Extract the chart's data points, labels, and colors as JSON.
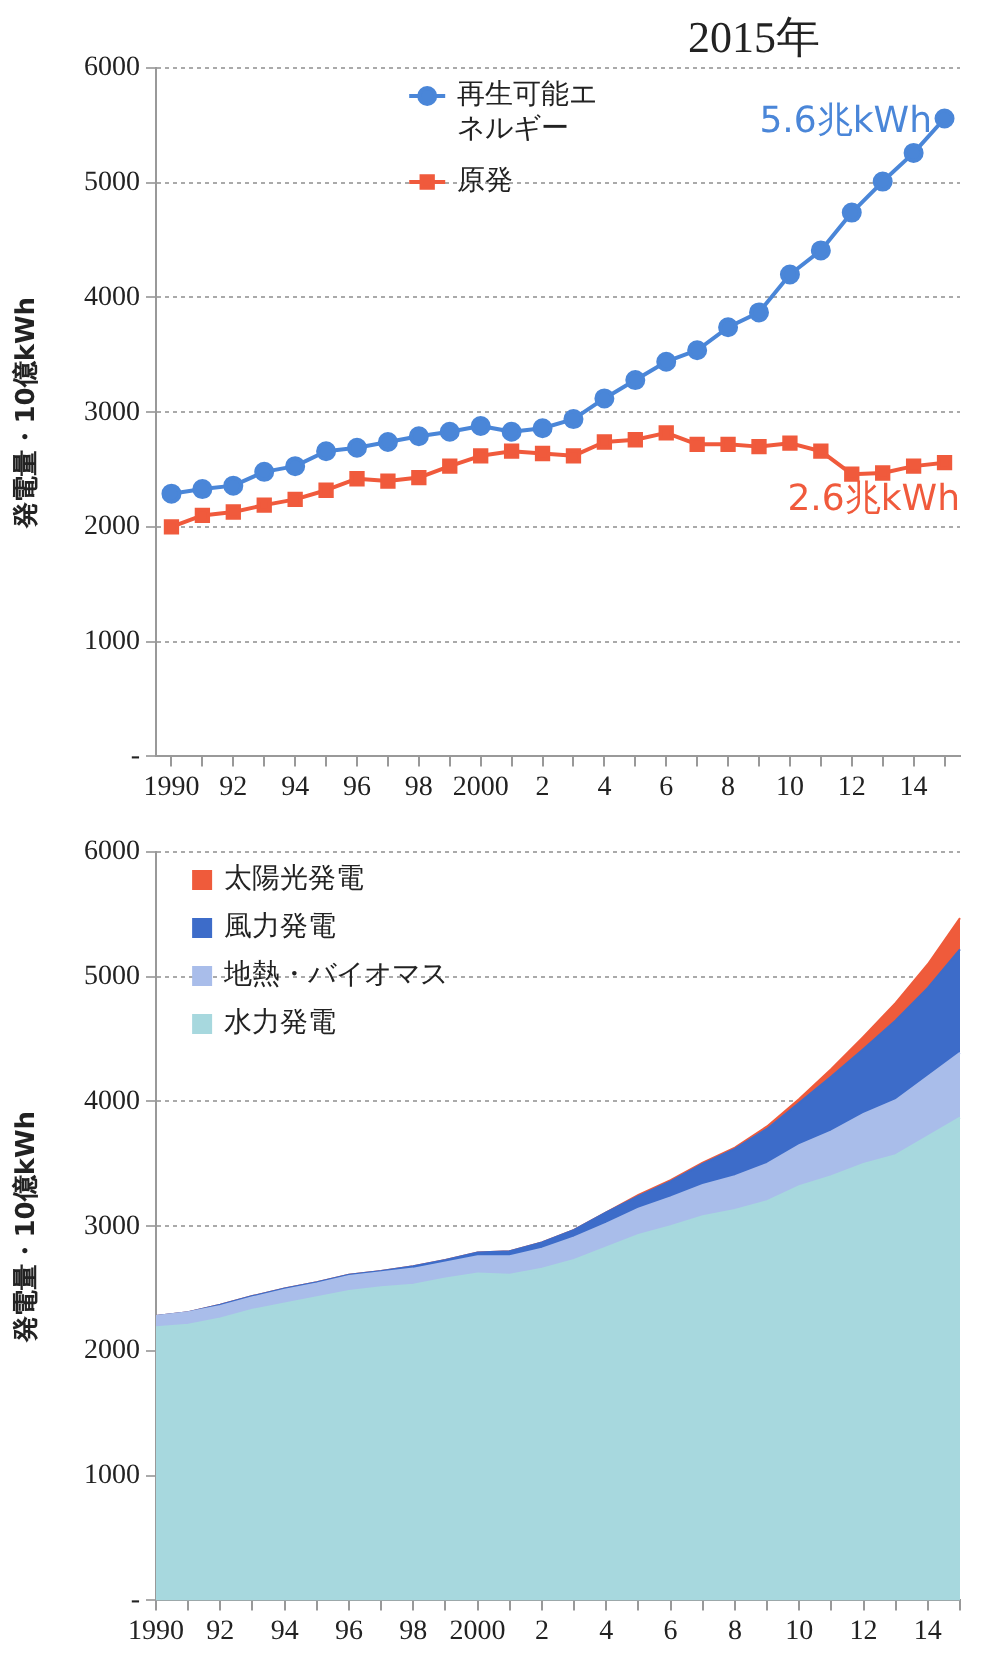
{
  "chart_data": [
    {
      "type": "line",
      "title": "2015年",
      "ylabel": "発電量・10億kWh",
      "categories": [
        "1990",
        null,
        "92",
        null,
        "94",
        null,
        "96",
        null,
        "98",
        null,
        "2000",
        null,
        "2",
        null,
        "4",
        null,
        "6",
        null,
        "8",
        null,
        "10",
        null,
        "12",
        null,
        "14",
        null
      ],
      "series": [
        {
          "name": "再生可能エネルギー",
          "color": "#4a86d8",
          "marker": "circle",
          "values": [
            2290,
            2330,
            2360,
            2480,
            2530,
            2660,
            2690,
            2740,
            2790,
            2830,
            2880,
            2830,
            2860,
            2940,
            3120,
            3280,
            3440,
            3540,
            3740,
            3870,
            4200,
            4410,
            4740,
            5010,
            5260,
            5560
          ]
        },
        {
          "name": "原発",
          "color": "#f05a3c",
          "marker": "square",
          "values": [
            2000,
            2100,
            2130,
            2190,
            2240,
            2320,
            2420,
            2400,
            2430,
            2530,
            2620,
            2660,
            2640,
            2620,
            2740,
            2760,
            2820,
            2720,
            2720,
            2700,
            2730,
            2660,
            2460,
            2470,
            2530,
            2560
          ]
        }
      ],
      "ylim": [
        0,
        6000
      ],
      "yticks": [
        {
          "value": 0,
          "label": "-"
        },
        1000,
        2000,
        3000,
        4000,
        5000,
        6000
      ],
      "grid": "y",
      "legend": "top left",
      "line_style": "solid",
      "annotations": [
        "5.6兆kWh",
        "2.6兆kWh"
      ]
    },
    {
      "type": "area",
      "stacked": true,
      "ylabel": "発電量・10億kWh",
      "categories": [
        "1990",
        null,
        "92",
        null,
        "94",
        null,
        "96",
        null,
        "98",
        null,
        "2000",
        null,
        "2",
        null,
        "4",
        null,
        "6",
        null,
        "8",
        null,
        "10",
        null,
        "12",
        null,
        "14",
        null
      ],
      "series": [
        {
          "name": "水力発電",
          "color": "#a7d8de",
          "values": [
            2190,
            2210,
            2260,
            2330,
            2380,
            2430,
            2480,
            2510,
            2530,
            2580,
            2620,
            2610,
            2660,
            2730,
            2830,
            2930,
            3000,
            3080,
            3130,
            3200,
            3320,
            3400,
            3500,
            3570,
            3720,
            3870
          ]
        },
        {
          "name": "地熱・バイオマス",
          "color": "#a9bdea",
          "values": [
            90,
            100,
            100,
            100,
            110,
            110,
            120,
            120,
            130,
            130,
            140,
            150,
            160,
            180,
            190,
            210,
            230,
            250,
            270,
            300,
            330,
            360,
            400,
            440,
            480,
            520
          ]
        },
        {
          "name": "風力発電",
          "color": "#3d6cc9",
          "values": [
            0,
            0,
            10,
            10,
            10,
            10,
            10,
            10,
            20,
            20,
            30,
            40,
            50,
            60,
            90,
            100,
            130,
            170,
            220,
            280,
            340,
            440,
            520,
            640,
            710,
            830
          ]
        },
        {
          "name": "太陽光発電",
          "color": "#ef5b3b",
          "values": [
            0,
            0,
            0,
            0,
            0,
            0,
            0,
            0,
            0,
            0,
            0,
            0,
            0,
            0,
            0,
            10,
            10,
            10,
            10,
            20,
            30,
            60,
            100,
            140,
            190,
            250
          ]
        }
      ],
      "ylim": [
        0,
        6000
      ],
      "yticks": [
        {
          "value": 0,
          "label": "-"
        },
        1000,
        2000,
        3000,
        4000,
        5000,
        6000
      ],
      "grid": "y",
      "legend": "top left"
    }
  ]
}
